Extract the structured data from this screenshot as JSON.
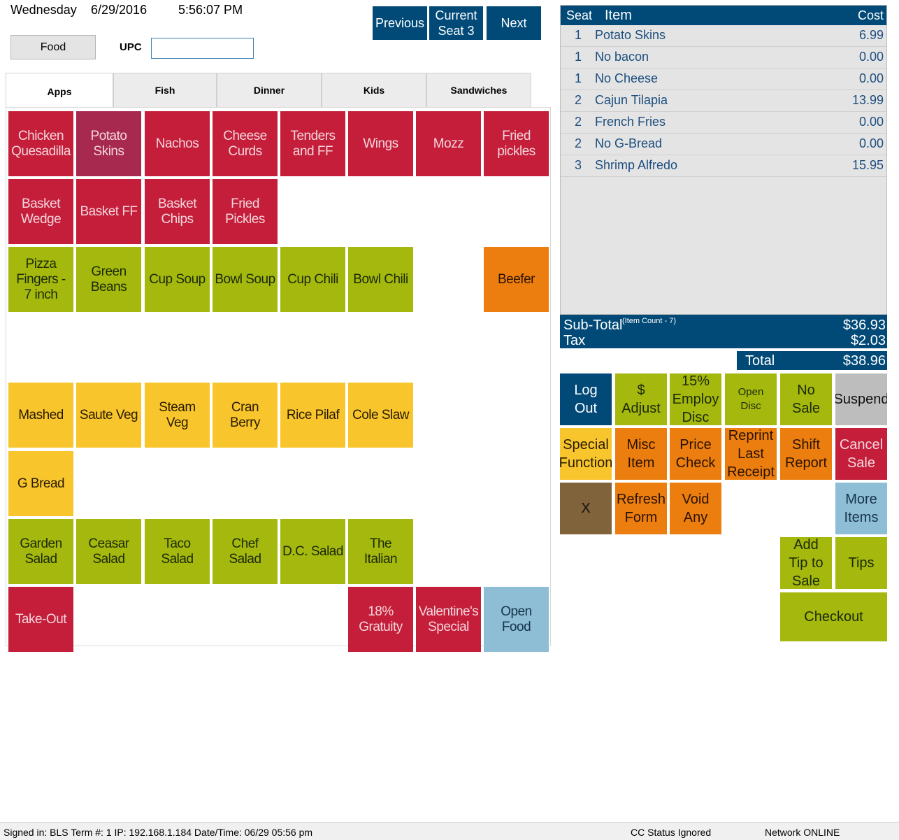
{
  "header": {
    "day": "Wednesday",
    "date": "6/29/2016",
    "time": "5:56:07 PM"
  },
  "nav": {
    "previous": "Previous",
    "current": "Current\nSeat 3",
    "next": "Next"
  },
  "category_button": "Food",
  "upc": {
    "label": "UPC",
    "value": ""
  },
  "tabs": [
    "Apps",
    "Fish",
    "Dinner",
    "Kids",
    "Sandwiches"
  ],
  "active_tab": "Apps",
  "menu_items": [
    [
      "Chicken\nQuesadilla",
      "Potato\nSkins",
      "Nachos",
      "Cheese\nCurds",
      "Tenders\nand FF",
      "Wings",
      "Mozz",
      "Fried\npickles"
    ],
    [
      "Basket\nWedge",
      "Basket FF",
      "Basket\nChips",
      "Fried\nPickles"
    ],
    [
      "Pizza\nFingers -\n7 inch",
      "Green\nBeans",
      "Cup Soup",
      "Bowl Soup",
      "Cup Chili",
      "Bowl Chili",
      "Beefer"
    ],
    [
      "Mashed",
      "Saute Veg",
      "Steam\nVeg",
      "Cran\nBerry",
      "Rice Pilaf",
      "Cole Slaw"
    ],
    [
      "G Bread"
    ],
    [
      "Garden\nSalad",
      "Ceasar\nSalad",
      "Taco\nSalad",
      "Chef\nSalad",
      "D.C. Salad",
      "The\nItalian"
    ],
    [
      "Take-Out",
      "18%\nGratuity",
      "Valentine's\nSpecial",
      "Open\nFood"
    ]
  ],
  "order": {
    "headers": {
      "seat": "Seat",
      "item": "Item",
      "cost": "Cost"
    },
    "rows": [
      {
        "seat": "1",
        "item": "Potato Skins",
        "cost": "6.99"
      },
      {
        "seat": "1",
        "item": "No bacon",
        "cost": "0.00"
      },
      {
        "seat": "1",
        "item": "No Cheese",
        "cost": "0.00"
      },
      {
        "seat": "2",
        "item": "Cajun Tilapia",
        "cost": "13.99"
      },
      {
        "seat": "2",
        "item": "French Fries",
        "cost": "0.00"
      },
      {
        "seat": "2",
        "item": "No G-Bread",
        "cost": "0.00"
      },
      {
        "seat": "3",
        "item": "Shrimp Alfredo",
        "cost": "15.95"
      }
    ]
  },
  "totals": {
    "subtotal_label": "Sub-Total",
    "item_count": "(Item Count - 7)",
    "subtotal": "$36.93",
    "tax_label": "Tax",
    "tax": "$2.03",
    "total_label": "Total",
    "total": "$38.96"
  },
  "functions": {
    "log_out": "Log\nOut",
    "adjust": "$\nAdjust",
    "employ_disc": "15%\nEmploy\nDisc",
    "open_disc": "Open\nDisc",
    "no_sale": "No\nSale",
    "suspend": "Suspend",
    "special_function": "Special\nFunction",
    "misc_item": "Misc\nItem",
    "price_check": "Price\nCheck",
    "reprint": "Reprint\nLast\nReceipt",
    "shift_report": "Shift\nReport",
    "cancel_sale": "Cancel\nSale",
    "x": "X",
    "refresh_form": "Refresh\nForm",
    "void_any": "Void\nAny",
    "more_items": "More\nItems",
    "add_tip": "Add\nTip to\nSale",
    "tips": "Tips",
    "checkout": "Checkout"
  },
  "status": {
    "signed_in": "Signed in: BLS Term #: 1 IP: 192.168.1.184 Date/Time: 06/29 05:56 pm",
    "cc_status": "CC Status Ignored",
    "network": "Network ONLINE"
  },
  "colors": {
    "navy": "#014a78",
    "red": "#c41e3a",
    "green": "#a5b80e",
    "orange": "#ec7e10",
    "yellow": "#f8c62c",
    "light_blue": "#8ebed5"
  }
}
